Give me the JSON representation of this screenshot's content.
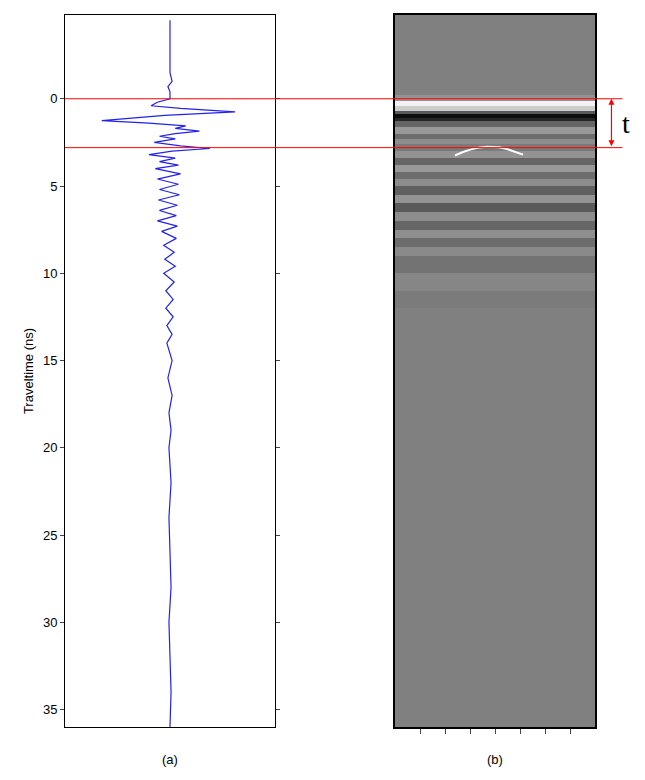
{
  "chart_data": [
    {
      "type": "line",
      "label": "(a)",
      "y_label": "Traveltime (ns)",
      "color": "#2222ee",
      "line_style": "solid",
      "tick_labels": "y",
      "xlim": [
        -1,
        1
      ],
      "ylim": [
        36,
        -4.8
      ],
      "yticks": [
        0,
        5,
        10,
        15,
        20,
        25,
        30,
        35
      ],
      "y": [
        -4.5,
        -1.5,
        -1.0,
        -0.7,
        -0.4,
        0,
        0.2,
        0.4,
        0.55,
        0.75,
        0.95,
        1.1,
        1.25,
        1.4,
        1.55,
        1.7,
        1.85,
        2.0,
        2.15,
        2.3,
        2.5,
        2.7,
        2.85,
        3.0,
        3.2,
        3.4,
        3.6,
        3.8,
        4.0,
        4.3,
        4.6,
        4.9,
        5.2,
        5.5,
        5.8,
        6.1,
        6.4,
        6.7,
        7.0,
        7.3,
        7.6,
        8.0,
        8.4,
        8.8,
        9.2,
        9.6,
        10.0,
        10.5,
        11,
        11.5,
        12,
        12.5,
        13,
        13.5,
        14,
        15,
        16,
        17,
        18,
        19,
        20,
        22,
        24,
        26,
        28,
        30,
        32,
        34,
        36
      ],
      "values": [
        0,
        0,
        0.02,
        -0.02,
        0,
        0,
        -0.12,
        -0.18,
        0.1,
        0.62,
        -0.05,
        -0.4,
        -0.65,
        -0.2,
        0.15,
        0.05,
        0.28,
        0.05,
        -0.1,
        0.05,
        -0.15,
        0.1,
        0.38,
        0.02,
        -0.2,
        0.05,
        -0.1,
        0.08,
        -0.14,
        0.1,
        -0.12,
        0.08,
        -0.1,
        0.09,
        -0.11,
        0.07,
        -0.1,
        0.06,
        -0.12,
        0.07,
        -0.08,
        0.06,
        -0.06,
        0.04,
        -0.05,
        0.05,
        -0.06,
        0.04,
        -0.04,
        0.03,
        -0.04,
        0.03,
        -0.03,
        0.02,
        -0.03,
        0.02,
        -0.02,
        0.02,
        -0.01,
        0.01,
        -0.01,
        0.01,
        -0.01,
        0,
        0.01,
        -0.01,
        0,
        0.01,
        0
      ]
    },
    {
      "type": "heatmap",
      "label": "(b)",
      "tick_labels": false,
      "xlim": [
        0,
        100
      ],
      "xticks": [
        12.5,
        25,
        37.5,
        50,
        62.5,
        75,
        87.5
      ],
      "ylim": [
        36,
        -4.8
      ],
      "time_edges": [
        -4.8,
        -0.2,
        0.1,
        0.4,
        0.7,
        0.9,
        1.1,
        1.3,
        1.6,
        2.0,
        2.3,
        2.6,
        3.0,
        3.4,
        3.8,
        4.2,
        4.6,
        5.0,
        5.5,
        6.0,
        6.5,
        7.0,
        7.5,
        8.0,
        8.5,
        9.0,
        10.0,
        11.0,
        12.0,
        36
      ],
      "amplitudes": [
        0,
        0.15,
        0.9,
        0.6,
        -0.3,
        -0.9,
        -0.7,
        -0.2,
        0.2,
        -0.15,
        0.1,
        -0.05,
        0.15,
        -0.2,
        0.2,
        -0.15,
        0.1,
        -0.25,
        0.15,
        -0.3,
        0.1,
        -0.2,
        0.12,
        -0.15,
        0.08,
        -0.1,
        0.05,
        -0.04,
        0
      ],
      "zlim": [
        -1,
        1
      ],
      "series": [
        {
          "type": "line",
          "color": "#ffffff",
          "x": [
            30,
            34,
            38,
            42,
            46,
            48,
            52,
            56,
            60,
            64
          ],
          "values": [
            3.25,
            3.05,
            2.9,
            2.8,
            2.75,
            2.75,
            2.78,
            2.88,
            3.02,
            3.2
          ]
        }
      ],
      "hlines": [
        0,
        2.8
      ],
      "annotations": [
        {
          "text": "t"
        }
      ]
    }
  ]
}
